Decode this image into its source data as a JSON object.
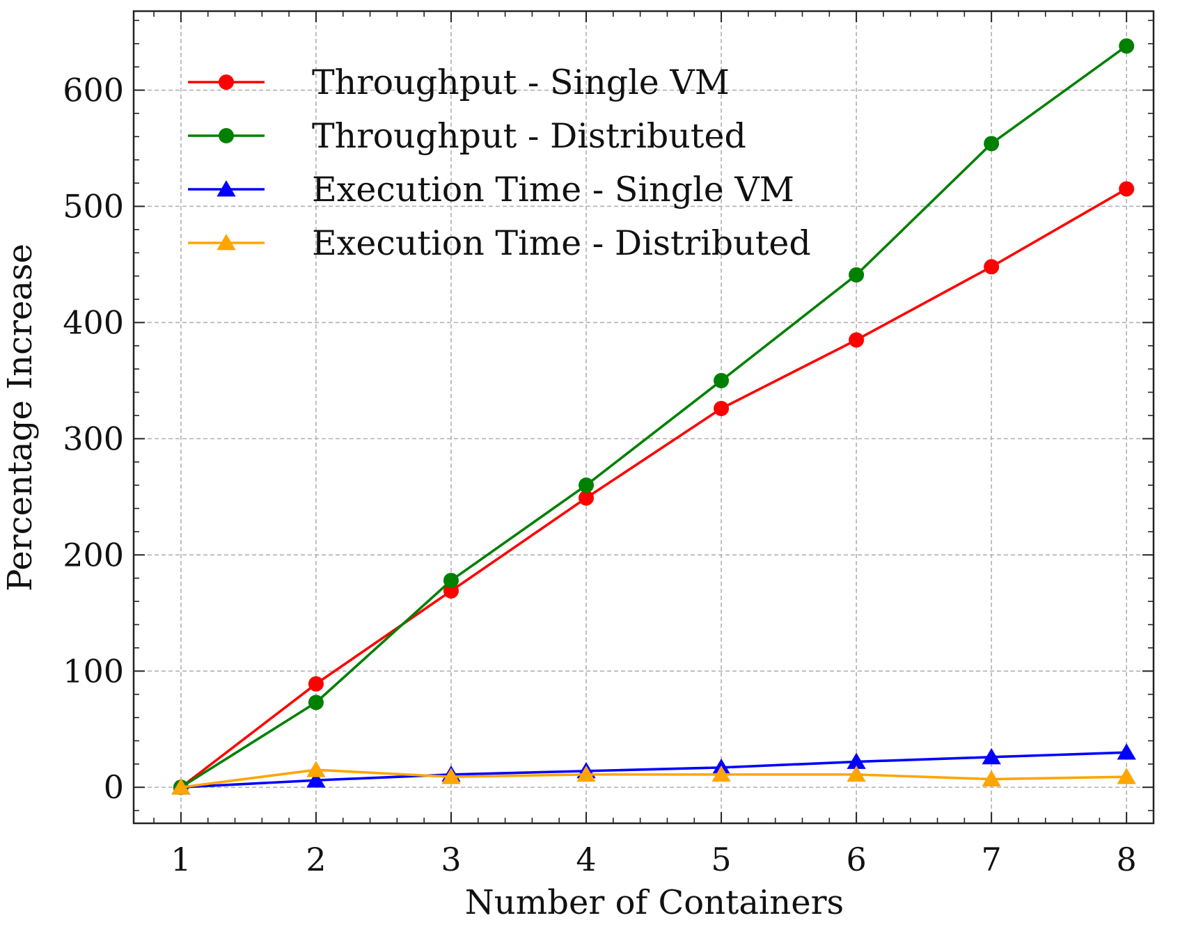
{
  "chart_data": {
    "type": "line",
    "title": "",
    "xlabel": "Number of Containers",
    "ylabel": "Percentage Increase",
    "x": [
      1,
      2,
      3,
      4,
      5,
      6,
      7,
      8
    ],
    "x_ticks": [
      "1",
      "2",
      "3",
      "4",
      "5",
      "6",
      "7",
      "8"
    ],
    "xlim": [
      0.65,
      8.2
    ],
    "y_ticks": [
      "0",
      "100",
      "200",
      "300",
      "400",
      "500",
      "600"
    ],
    "ylim": [
      -31,
      668
    ],
    "grid": true,
    "legend_position": "top-left",
    "series": [
      {
        "name": "Throughput - Single VM",
        "color": "#ff0000",
        "marker": "circle",
        "values": [
          0,
          89,
          169,
          249,
          326,
          385,
          448,
          515
        ]
      },
      {
        "name": "Throughput - Distributed",
        "color": "#008000",
        "marker": "circle",
        "values": [
          0,
          73,
          178,
          260,
          350,
          441,
          554,
          638
        ]
      },
      {
        "name": "Execution Time - Single VM",
        "color": "#0000ff",
        "marker": "triangle",
        "values": [
          0,
          6,
          11,
          14,
          17,
          22,
          26,
          30
        ]
      },
      {
        "name": "Execution Time - Distributed",
        "color": "#ffa500",
        "marker": "triangle",
        "values": [
          0,
          15,
          9,
          11,
          11,
          11,
          7,
          9
        ]
      }
    ]
  }
}
